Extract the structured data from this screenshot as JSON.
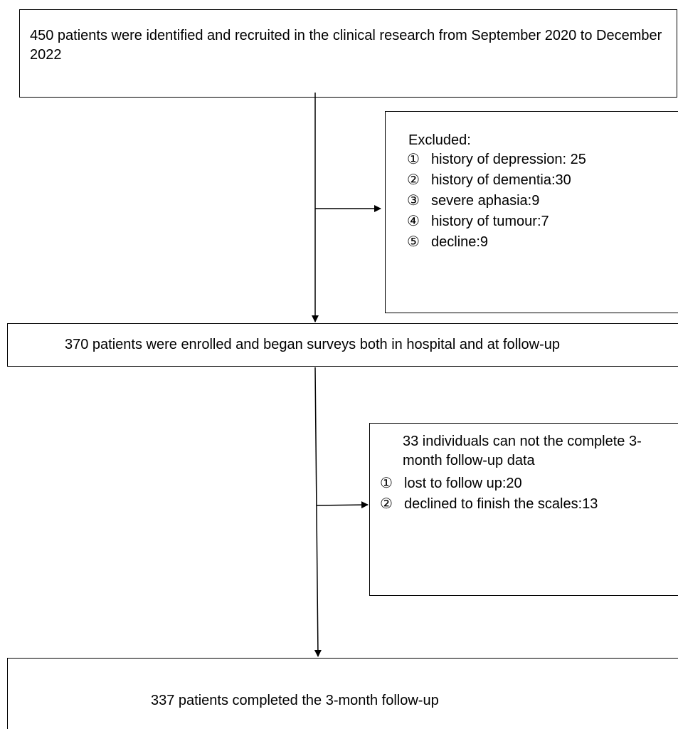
{
  "nodes": {
    "identified": "450 patients were identified and recruited in the clinical research from September 2020 to December 2022",
    "excluded": {
      "heading": "Excluded:",
      "items": [
        {
          "marker": "①",
          "text": "history of depression: 25"
        },
        {
          "marker": "②",
          "text": "history of dementia:30"
        },
        {
          "marker": "③",
          "text": "severe aphasia:9"
        },
        {
          "marker": "④",
          "text": "history of tumour:7"
        },
        {
          "marker": "⑤",
          "text": "decline:9"
        }
      ]
    },
    "enrolled": "370 patients were enrolled and began surveys both in hospital and at follow-up",
    "incomplete": {
      "heading": "33 individuals can not the complete 3-month follow-up data",
      "items": [
        {
          "marker": "①",
          "text": "lost to follow up:20"
        },
        {
          "marker": "②",
          "text": "declined to finish the scales:13"
        }
      ]
    },
    "completed": "337 patients completed the 3-month follow-up"
  }
}
